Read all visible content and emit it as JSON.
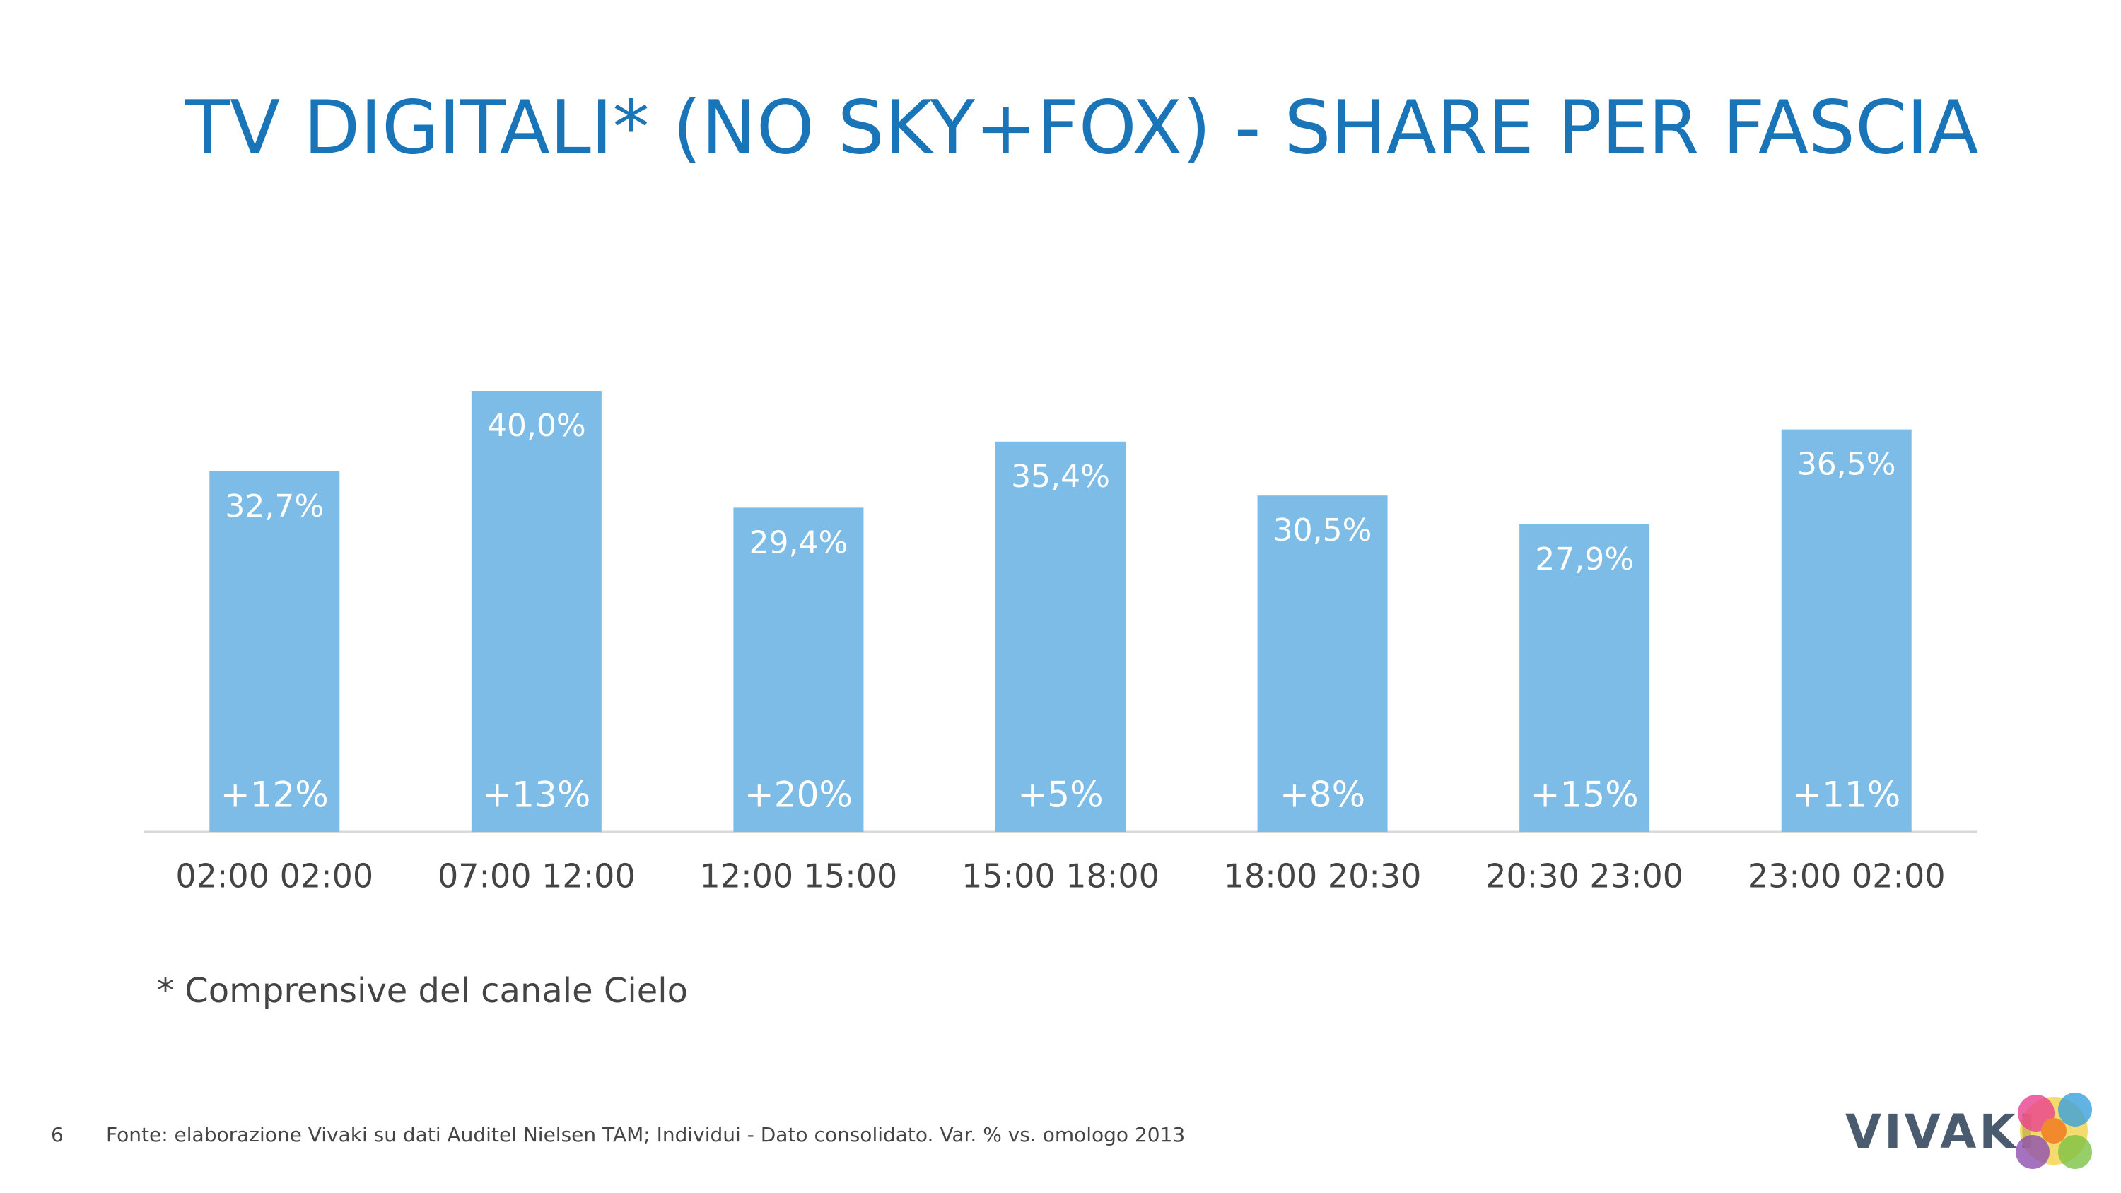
{
  "chart_data": {
    "type": "bar",
    "title": "TV DIGITALI* (NO SKY+FOX) - SHARE PER FASCIA",
    "categories": [
      "02:00 02:00",
      "07:00 12:00",
      "12:00 15:00",
      "15:00 18:00",
      "18:00 20:30",
      "20:30 23:00",
      "23:00 02:00"
    ],
    "values": [
      32.7,
      40.0,
      29.4,
      35.4,
      30.5,
      27.9,
      36.5
    ],
    "value_labels": [
      "32,7%",
      "40,0%",
      "29,4%",
      "35,4%",
      "30,5%",
      "27,9%",
      "36,5%"
    ],
    "change_labels": [
      "+12%",
      "+13%",
      "+20%",
      "+5%",
      "+8%",
      "+15%",
      "+11%"
    ],
    "color": "#7dbce6",
    "footnote": "* Comprensive del canale Cielo"
  },
  "footer": {
    "page_number": "6",
    "source": "Fonte: elaborazione Vivaki su dati Auditel Nielsen TAM; Individui - Dato consolidato. Var. % vs. omologo 2013",
    "logo": "VIVAKI"
  }
}
